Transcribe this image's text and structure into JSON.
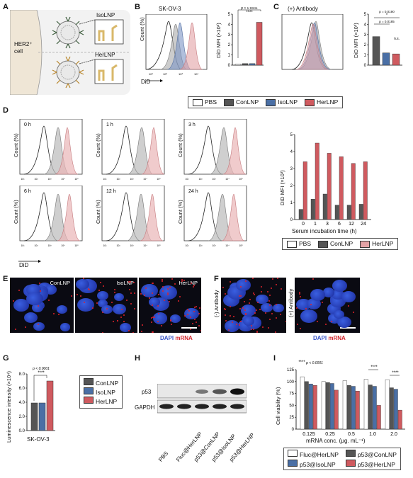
{
  "panels": {
    "A": "A",
    "B": "B",
    "C": "C",
    "D": "D",
    "E": "E",
    "F": "F",
    "G": "G",
    "H": "H",
    "I": "I"
  },
  "panel_a": {
    "cell": "HER2⁺\ncell",
    "iso": "IsoLNP",
    "her": "HerLNP"
  },
  "panel_b": {
    "title": "SK-OV-3",
    "ylabel": "DiD MFI (×10³)",
    "xlabel": "DiD",
    "count": "Count (%)",
    "p": "p < 0.0001",
    "stars": "****"
  },
  "panel_c": {
    "title": "(+) Antibody",
    "ylabel": "DiD MFI (×10³)",
    "p1": "p = 0.0190",
    "p2": "p = 0.0185",
    "star": "*",
    "ns": "n.s."
  },
  "legend_bc": [
    {
      "label": "PBS",
      "color": "#ffffff"
    },
    {
      "label": "ConLNP",
      "color": "#555555"
    },
    {
      "label": "IsoLNP",
      "color": "#4a6fa5"
    },
    {
      "label": "HerLNP",
      "color": "#cf5a5f"
    }
  ],
  "panel_d": {
    "times": [
      "0 h",
      "1 h",
      "3 h",
      "6 h",
      "12 h",
      "24 h"
    ],
    "xlabel": "DiD",
    "count": "Count (%)",
    "ylabel": "DiD MFI (×10³)",
    "chart_xlabel": "Serum incubation time (h)"
  },
  "legend_d": [
    {
      "label": "PBS",
      "color": "#ffffff"
    },
    {
      "label": "ConLNP",
      "color": "#555555"
    },
    {
      "label": "HerLNP",
      "color": "#cf5a5f"
    }
  ],
  "panel_e": {
    "labels": [
      "ConLNP",
      "IsoLNP",
      "HerLNP"
    ],
    "dapi": "DAPI",
    "mrna": "mRNA"
  },
  "panel_f": {
    "left": "(-) Antibody",
    "right": "(+) Antibody",
    "dapi": "DAPI",
    "mrna": "mRNA"
  },
  "panel_g": {
    "ylabel": "Luminescence intensity (×10⁴)",
    "xlabel": "SK-OV-3",
    "p": "p < 0.0001",
    "stars": "****",
    "legend": [
      {
        "label": "ConLNP",
        "color": "#555555"
      },
      {
        "label": "IsoLNP",
        "color": "#4a6fa5"
      },
      {
        "label": "HerLNP",
        "color": "#cf5a5f"
      }
    ]
  },
  "panel_h": {
    "rows": [
      "p53",
      "GAPDH"
    ],
    "lanes": [
      "PBS",
      "Fluc@HerLNP",
      "p53@ConLNP",
      "p53@IsoLNP",
      "p53@HerLNP"
    ]
  },
  "panel_i": {
    "ylabel": "Cell viability (%)",
    "xlabel": "mRNA conc. (μg. mL⁻¹)",
    "p": "p < 0.0001",
    "stars": "****",
    "legend": [
      {
        "label": "Fluc@HerLNP",
        "color": "#ffffff"
      },
      {
        "label": "p53@ConLNP",
        "color": "#555555"
      },
      {
        "label": "p53@IsoLNP",
        "color": "#4a6fa5"
      },
      {
        "label": "p53@HerLNP",
        "color": "#cf5a5f"
      }
    ]
  },
  "chart_data": [
    {
      "type": "bar",
      "panel": "B",
      "categories": [
        "PBS",
        "ConLNP",
        "IsoLNP",
        "HerLNP"
      ],
      "values": [
        0.1,
        0.15,
        0.15,
        4.2
      ],
      "ylabel": "DiD MFI (×10³)",
      "ylim": [
        0,
        5
      ],
      "yticks": [
        0,
        1,
        2,
        3,
        4,
        5
      ]
    },
    {
      "type": "bar",
      "panel": "C",
      "categories": [
        "ConLNP",
        "IsoLNP",
        "HerLNP"
      ],
      "values": [
        2.8,
        1.2,
        1.1
      ],
      "ylabel": "DiD MFI (×10³)",
      "ylim": [
        0,
        5
      ],
      "yticks": [
        0,
        1,
        2,
        3,
        4,
        5
      ]
    },
    {
      "type": "bar",
      "panel": "D",
      "categories": [
        "0",
        "1",
        "3",
        "6",
        "12",
        "24"
      ],
      "xlabel": "Serum incubation time (h)",
      "ylabel": "DiD MFI (×10³)",
      "ylim": [
        0,
        5
      ],
      "yticks": [
        0,
        1,
        2,
        3,
        4,
        5
      ],
      "series": [
        {
          "name": "ConLNP",
          "values": [
            0.6,
            1.2,
            1.5,
            0.85,
            0.85,
            0.9
          ]
        },
        {
          "name": "HerLNP",
          "values": [
            3.4,
            4.5,
            3.9,
            3.7,
            3.3,
            3.4
          ]
        }
      ]
    },
    {
      "type": "bar",
      "panel": "G",
      "categories": [
        "ConLNP",
        "IsoLNP",
        "HerLNP"
      ],
      "values": [
        3.9,
        3.9,
        7.0
      ],
      "ylabel": "Luminescence intensity (×10⁴)",
      "xlabel": "SK-OV-3",
      "ylim": [
        0,
        8
      ],
      "yticks": [
        "0.0",
        "2.0",
        "4.0",
        "6.0",
        "8.0"
      ]
    },
    {
      "type": "bar",
      "panel": "I",
      "categories": [
        "0.125",
        "0.25",
        "0.5",
        "1.0",
        "2.0"
      ],
      "xlabel": "mRNA conc. (μg. mL⁻¹)",
      "ylabel": "Cell viability (%)",
      "ylim": [
        0,
        125
      ],
      "yticks": [
        0,
        25,
        50,
        75,
        100,
        125
      ],
      "series": [
        {
          "name": "Fluc@HerLNP",
          "values": [
            110,
            100,
            102,
            105,
            104
          ]
        },
        {
          "name": "p53@ConLNP",
          "values": [
            100,
            98,
            92,
            93,
            87
          ]
        },
        {
          "name": "p53@IsoLNP",
          "values": [
            95,
            96,
            90,
            90,
            84
          ]
        },
        {
          "name": "p53@HerLNP",
          "values": [
            92,
            82,
            80,
            50,
            40
          ]
        }
      ]
    }
  ]
}
